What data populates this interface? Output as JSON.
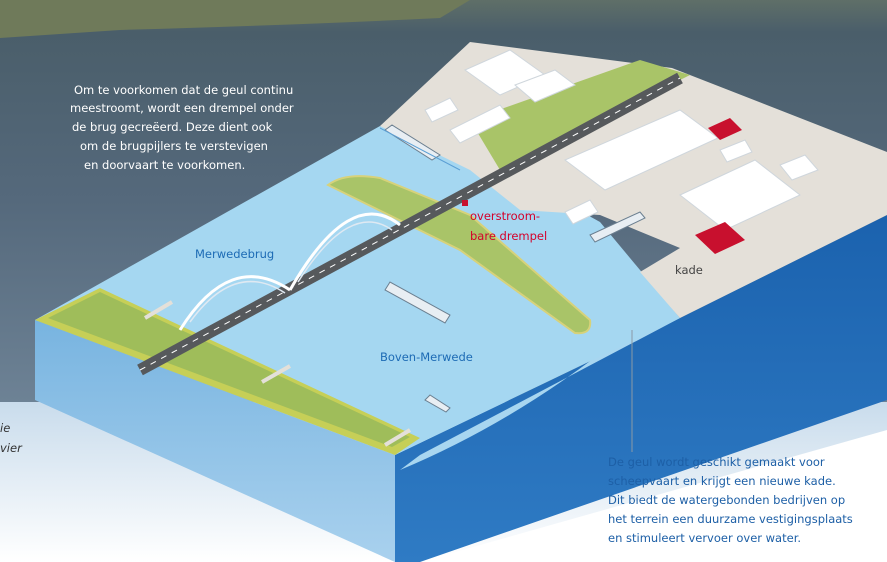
{
  "annotations": {
    "top_left": [
      "Om te voorkomen dat de geul continu",
      "meestroomt, wordt een drempel onder",
      "de brug gecreëerd. Deze dient ook",
      "om de brugpijlers te verstevigen",
      "en doorvaart te voorkomen."
    ],
    "bottom_right": [
      "De geul wordt geschikt gemaakt voor",
      "scheepvaart en krijgt een nieuwe kade.",
      "Dit biedt de watergebonden bedrijven op",
      "het terrein een duurzame vestigingsplaats",
      "en stimuleert vervoer over water."
    ],
    "left_cut": [
      "ie",
      "vier"
    ]
  },
  "labels": {
    "drempel": [
      "overstroom-",
      "bare drempel"
    ],
    "bridge": "Merwedebrug",
    "kade": "kade",
    "river": "Boven-Merwede"
  }
}
